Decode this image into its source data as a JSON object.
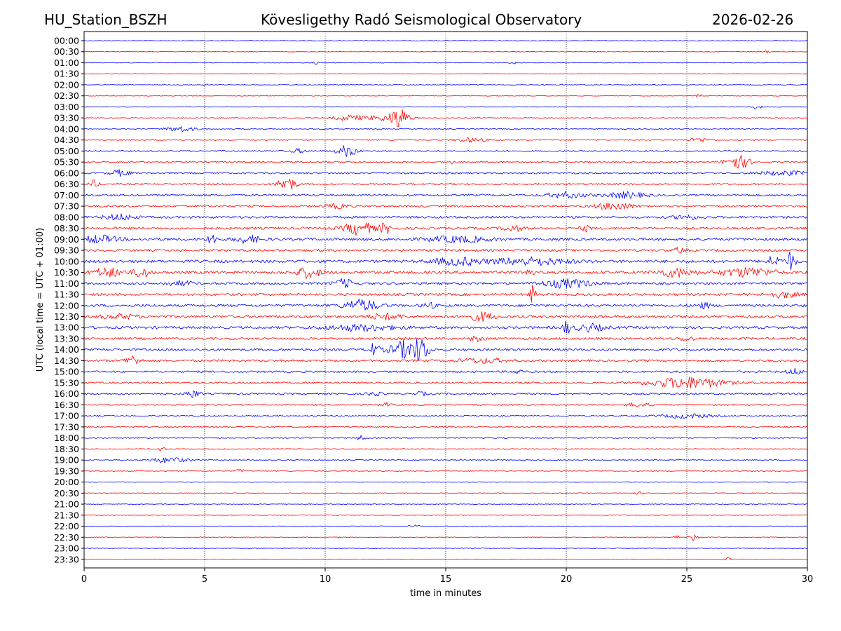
{
  "header": {
    "station": "HU_Station_BSZH",
    "observatory": "Kövesligethy Radó Seismological Observatory",
    "date": "2026-02-26"
  },
  "chart_data": {
    "type": "line",
    "title": "Kövesligethy Radó Seismological Observatory",
    "xlabel": "time in minutes",
    "ylabel": "UTC (local time = UTC + 01:00)",
    "xlim": [
      0,
      30
    ],
    "xticks": [
      0,
      5,
      10,
      15,
      20,
      25,
      30
    ],
    "vertical_gridlines_at": [
      5,
      10,
      15,
      20,
      25
    ],
    "grid": "dotted vertical",
    "trace_colors": [
      "#0000ff",
      "#ff0000"
    ],
    "rows": [
      "00:00",
      "00:30",
      "01:00",
      "01:30",
      "02:00",
      "02:30",
      "03:00",
      "03:30",
      "04:00",
      "04:30",
      "05:00",
      "05:30",
      "06:00",
      "06:30",
      "07:00",
      "07:30",
      "08:00",
      "08:30",
      "09:00",
      "09:30",
      "10:00",
      "10:30",
      "11:00",
      "11:30",
      "12:00",
      "12:30",
      "13:00",
      "13:30",
      "14:00",
      "14:30",
      "15:00",
      "15:30",
      "16:00",
      "16:30",
      "17:00",
      "17:30",
      "18:00",
      "18:30",
      "19:00",
      "19:30",
      "20:00",
      "20:30",
      "21:00",
      "21:30",
      "22:00",
      "22:30",
      "23:00",
      "23:30"
    ],
    "noise_level": [
      0.4,
      0.4,
      0.5,
      0.4,
      0.5,
      0.5,
      0.5,
      0.6,
      0.6,
      0.8,
      1.0,
      1.0,
      1.2,
      1.2,
      1.4,
      1.3,
      1.6,
      1.7,
      1.9,
      1.6,
      2.0,
      2.0,
      1.6,
      1.7,
      1.8,
      1.8,
      1.8,
      1.6,
      1.6,
      1.6,
      1.4,
      1.2,
      1.2,
      1.0,
      1.0,
      0.8,
      0.8,
      0.7,
      0.7,
      0.6,
      0.5,
      0.5,
      0.5,
      0.5,
      0.5,
      0.5,
      0.4,
      0.4
    ],
    "events": [
      {
        "row": 1,
        "minute": 28.3,
        "amplitude": 2,
        "duration": 0.3
      },
      {
        "row": 2,
        "minute": 9.6,
        "amplitude": 2,
        "duration": 0.3
      },
      {
        "row": 2,
        "minute": 17.9,
        "amplitude": 2,
        "duration": 0.4
      },
      {
        "row": 4,
        "minute": 5.0,
        "amplitude": 2,
        "duration": 0.2
      },
      {
        "row": 5,
        "minute": 25.5,
        "amplitude": 2,
        "duration": 0.3
      },
      {
        "row": 6,
        "minute": 27.9,
        "amplitude": 3,
        "duration": 0.4
      },
      {
        "row": 7,
        "minute": 11.0,
        "amplitude": 4,
        "duration": 1.2
      },
      {
        "row": 7,
        "minute": 12.5,
        "amplitude": 4,
        "duration": 1.6
      },
      {
        "row": 7,
        "minute": 13.1,
        "amplitude": 13,
        "duration": 0.7
      },
      {
        "row": 8,
        "minute": 4.0,
        "amplitude": 4,
        "duration": 1.2
      },
      {
        "row": 9,
        "minute": 16.0,
        "amplitude": 3,
        "duration": 1.2
      },
      {
        "row": 9,
        "minute": 25.5,
        "amplitude": 3,
        "duration": 0.8
      },
      {
        "row": 10,
        "minute": 8.9,
        "amplitude": 3,
        "duration": 0.6
      },
      {
        "row": 10,
        "minute": 10.9,
        "amplitude": 8,
        "duration": 0.8
      },
      {
        "row": 11,
        "minute": 27.1,
        "amplitude": 10,
        "duration": 1.0
      },
      {
        "row": 11,
        "minute": 15.2,
        "amplitude": 3,
        "duration": 0.3
      },
      {
        "row": 12,
        "minute": 1.5,
        "amplitude": 4,
        "duration": 0.8
      },
      {
        "row": 12,
        "minute": 29.0,
        "amplitude": 3,
        "duration": 2.0
      },
      {
        "row": 13,
        "minute": 8.4,
        "amplitude": 11,
        "duration": 0.7
      },
      {
        "row": 13,
        "minute": 0.4,
        "amplitude": 5,
        "duration": 0.4
      },
      {
        "row": 14,
        "minute": 20.0,
        "amplitude": 4,
        "duration": 1.5
      },
      {
        "row": 14,
        "minute": 22.5,
        "amplitude": 4,
        "duration": 1.6
      },
      {
        "row": 15,
        "minute": 22.0,
        "amplitude": 5,
        "duration": 1.6
      },
      {
        "row": 15,
        "minute": 10.5,
        "amplitude": 3,
        "duration": 1.0
      },
      {
        "row": 16,
        "minute": 1.5,
        "amplitude": 4,
        "duration": 1.2
      },
      {
        "row": 16,
        "minute": 25.0,
        "amplitude": 3,
        "duration": 1.0
      },
      {
        "row": 17,
        "minute": 11.4,
        "amplitude": 9,
        "duration": 1.2
      },
      {
        "row": 17,
        "minute": 12.5,
        "amplitude": 8,
        "duration": 0.4
      },
      {
        "row": 17,
        "minute": 17.8,
        "amplitude": 4,
        "duration": 0.8
      },
      {
        "row": 17,
        "minute": 20.8,
        "amplitude": 4,
        "duration": 0.4
      },
      {
        "row": 18,
        "minute": 0.6,
        "amplitude": 5,
        "duration": 1.5
      },
      {
        "row": 18,
        "minute": 5.3,
        "amplitude": 7,
        "duration": 0.4
      },
      {
        "row": 18,
        "minute": 6.8,
        "amplitude": 5,
        "duration": 1.0
      },
      {
        "row": 18,
        "minute": 15.5,
        "amplitude": 4,
        "duration": 2.5
      },
      {
        "row": 19,
        "minute": 24.7,
        "amplitude": 4,
        "duration": 0.4
      },
      {
        "row": 20,
        "minute": 15.5,
        "amplitude": 5,
        "duration": 2.0
      },
      {
        "row": 20,
        "minute": 18.5,
        "amplitude": 5,
        "duration": 3.0
      },
      {
        "row": 20,
        "minute": 28.6,
        "amplitude": 8,
        "duration": 0.5
      },
      {
        "row": 20,
        "minute": 29.3,
        "amplitude": 12,
        "duration": 0.4
      },
      {
        "row": 21,
        "minute": 1.0,
        "amplitude": 6,
        "duration": 1.2
      },
      {
        "row": 21,
        "minute": 2.4,
        "amplitude": 8,
        "duration": 0.6
      },
      {
        "row": 21,
        "minute": 9.3,
        "amplitude": 7,
        "duration": 1.0
      },
      {
        "row": 21,
        "minute": 18.4,
        "amplitude": 6,
        "duration": 0.4
      },
      {
        "row": 21,
        "minute": 24.5,
        "amplitude": 6,
        "duration": 1.4
      },
      {
        "row": 21,
        "minute": 27.5,
        "amplitude": 6,
        "duration": 2.2
      },
      {
        "row": 22,
        "minute": 4.0,
        "amplitude": 3,
        "duration": 1.2
      },
      {
        "row": 22,
        "minute": 10.8,
        "amplitude": 6,
        "duration": 0.8
      },
      {
        "row": 22,
        "minute": 20.0,
        "amplitude": 6,
        "duration": 2.0
      },
      {
        "row": 23,
        "minute": 18.6,
        "amplitude": 12,
        "duration": 0.3
      },
      {
        "row": 23,
        "minute": 29.0,
        "amplitude": 4,
        "duration": 1.2
      },
      {
        "row": 24,
        "minute": 11.5,
        "amplitude": 8,
        "duration": 1.4
      },
      {
        "row": 24,
        "minute": 14.3,
        "amplitude": 4,
        "duration": 0.5
      },
      {
        "row": 24,
        "minute": 25.7,
        "amplitude": 4,
        "duration": 0.6
      },
      {
        "row": 25,
        "minute": 1.5,
        "amplitude": 3,
        "duration": 1.5
      },
      {
        "row": 25,
        "minute": 12.5,
        "amplitude": 4,
        "duration": 1.4
      },
      {
        "row": 25,
        "minute": 16.5,
        "amplitude": 6,
        "duration": 1.0
      },
      {
        "row": 26,
        "minute": 11.5,
        "amplitude": 4,
        "duration": 3.0
      },
      {
        "row": 26,
        "minute": 20.0,
        "amplitude": 9,
        "duration": 0.3
      },
      {
        "row": 26,
        "minute": 21.0,
        "amplitude": 5,
        "duration": 1.2
      },
      {
        "row": 27,
        "minute": 16.3,
        "amplitude": 3,
        "duration": 0.6
      },
      {
        "row": 27,
        "minute": 25.0,
        "amplitude": 3,
        "duration": 0.6
      },
      {
        "row": 28,
        "minute": 12.0,
        "amplitude": 8,
        "duration": 0.5
      },
      {
        "row": 28,
        "minute": 13.3,
        "amplitude": 12,
        "duration": 1.2
      },
      {
        "row": 28,
        "minute": 14.0,
        "amplitude": 14,
        "duration": 0.6
      },
      {
        "row": 29,
        "minute": 2.0,
        "amplitude": 7,
        "duration": 0.6
      },
      {
        "row": 29,
        "minute": 16.5,
        "amplitude": 3,
        "duration": 2.0
      },
      {
        "row": 30,
        "minute": 18.0,
        "amplitude": 3,
        "duration": 0.4
      },
      {
        "row": 30,
        "minute": 29.5,
        "amplitude": 4,
        "duration": 0.6
      },
      {
        "row": 31,
        "minute": 25.0,
        "amplitude": 8,
        "duration": 3.0
      },
      {
        "row": 32,
        "minute": 4.5,
        "amplitude": 5,
        "duration": 0.6
      },
      {
        "row": 32,
        "minute": 12.0,
        "amplitude": 3,
        "duration": 0.6
      },
      {
        "row": 32,
        "minute": 14.0,
        "amplitude": 3,
        "duration": 0.4
      },
      {
        "row": 33,
        "minute": 12.5,
        "amplitude": 3,
        "duration": 0.4
      },
      {
        "row": 33,
        "minute": 23.0,
        "amplitude": 3,
        "duration": 1.0
      },
      {
        "row": 34,
        "minute": 25.0,
        "amplitude": 3,
        "duration": 2.0
      },
      {
        "row": 36,
        "minute": 11.5,
        "amplitude": 3,
        "duration": 0.4
      },
      {
        "row": 37,
        "minute": 3.2,
        "amplitude": 3,
        "duration": 0.3
      },
      {
        "row": 38,
        "minute": 3.5,
        "amplitude": 4,
        "duration": 1.5
      },
      {
        "row": 39,
        "minute": 6.5,
        "amplitude": 3,
        "duration": 0.4
      },
      {
        "row": 41,
        "minute": 23.0,
        "amplitude": 2,
        "duration": 0.4
      },
      {
        "row": 44,
        "minute": 13.7,
        "amplitude": 2,
        "duration": 0.4
      },
      {
        "row": 45,
        "minute": 25.3,
        "amplitude": 5,
        "duration": 0.3
      },
      {
        "row": 45,
        "minute": 24.6,
        "amplitude": 4,
        "duration": 0.2
      },
      {
        "row": 47,
        "minute": 26.7,
        "amplitude": 2,
        "duration": 0.3
      }
    ]
  }
}
